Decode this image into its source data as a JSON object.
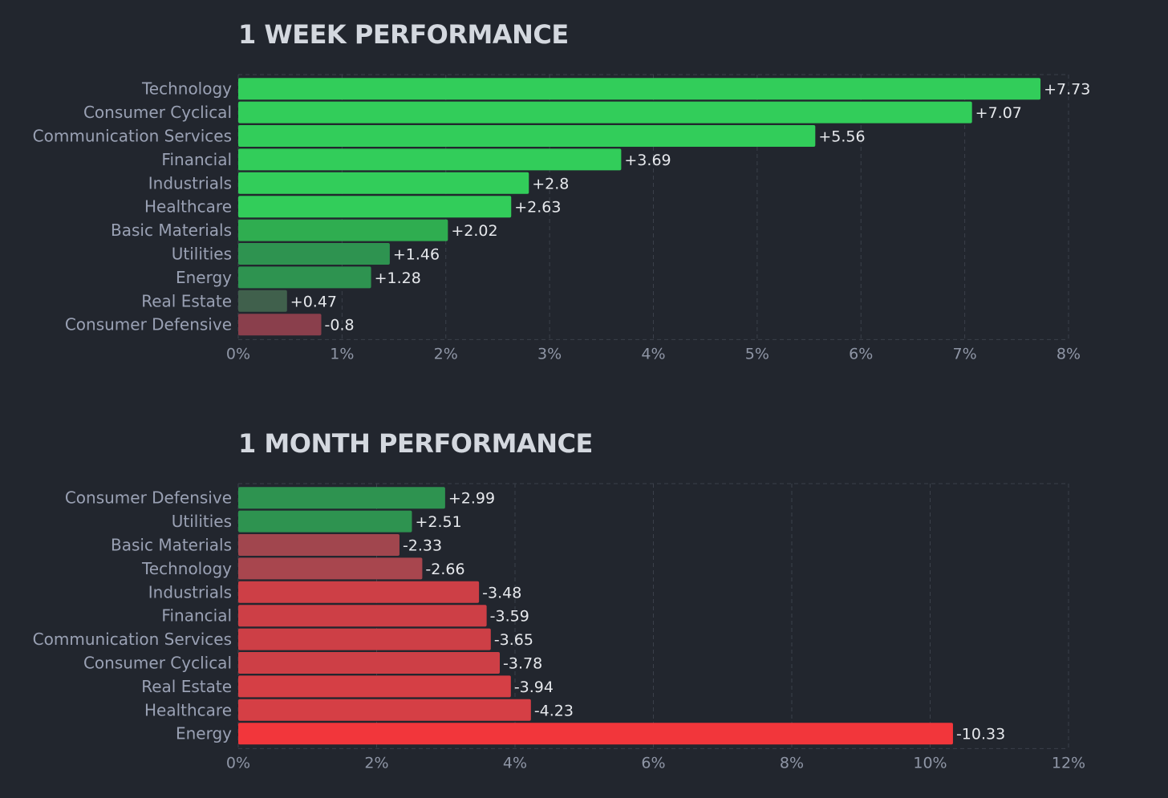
{
  "colors": {
    "background": "#22262e",
    "grid": "#3b404a",
    "positive_strong": "#32cd5a",
    "positive_mid": "#2e9c4e",
    "positive_weak": "#40604c",
    "negative_weak": "#8a3f4c",
    "negative_mid": "#cd3f46",
    "negative_strong": "#f2363b"
  },
  "chart_data": [
    {
      "type": "bar",
      "orientation": "horizontal",
      "title": "1 WEEK PERFORMANCE",
      "categories": [
        "Technology",
        "Consumer Cyclical",
        "Communication Services",
        "Financial",
        "Industrials",
        "Healthcare",
        "Basic Materials",
        "Utilities",
        "Energy",
        "Real Estate",
        "Consumer Defensive"
      ],
      "values": [
        7.73,
        7.07,
        5.56,
        3.69,
        2.8,
        2.63,
        2.02,
        1.46,
        1.28,
        0.47,
        -0.8
      ],
      "value_labels": [
        "+7.73",
        "+7.07",
        "+5.56",
        "+3.69",
        "+2.8",
        "+2.63",
        "+2.02",
        "+1.46",
        "+1.28",
        "+0.47",
        "-0.8"
      ],
      "bar_colors": [
        "#32cd5a",
        "#32cd5a",
        "#32cd5a",
        "#32cd5a",
        "#32cd5a",
        "#32cd5a",
        "#2fad50",
        "#2e9350",
        "#2e9350",
        "#40604c",
        "#8a3f4c"
      ],
      "xlim": [
        0,
        8
      ],
      "xticks": [
        "0%",
        "1%",
        "2%",
        "3%",
        "4%",
        "5%",
        "6%",
        "7%",
        "8%"
      ],
      "grid": true,
      "xlabel": "",
      "ylabel": ""
    },
    {
      "type": "bar",
      "orientation": "horizontal",
      "title": "1 MONTH PERFORMANCE",
      "categories": [
        "Consumer Defensive",
        "Utilities",
        "Basic Materials",
        "Technology",
        "Industrials",
        "Financial",
        "Communication Services",
        "Consumer Cyclical",
        "Real Estate",
        "Healthcare",
        "Energy"
      ],
      "values": [
        2.99,
        2.51,
        -2.33,
        -2.66,
        -3.48,
        -3.59,
        -3.65,
        -3.78,
        -3.94,
        -4.23,
        -10.33
      ],
      "value_labels": [
        "+2.99",
        "+2.51",
        "-2.33",
        "-2.66",
        "-3.48",
        "-3.59",
        "-3.65",
        "-3.78",
        "-3.94",
        "-4.23",
        "-10.33"
      ],
      "bar_colors": [
        "#2e9350",
        "#2e9350",
        "#a1464e",
        "#a8464e",
        "#cd3f46",
        "#cd3f46",
        "#cd3f46",
        "#cd3f46",
        "#d53f45",
        "#d53f45",
        "#f2363b"
      ],
      "xlim": [
        0,
        12
      ],
      "xticks": [
        "0%",
        "2%",
        "4%",
        "6%",
        "8%",
        "10%",
        "12%"
      ],
      "grid": true,
      "xlabel": "",
      "ylabel": ""
    }
  ]
}
